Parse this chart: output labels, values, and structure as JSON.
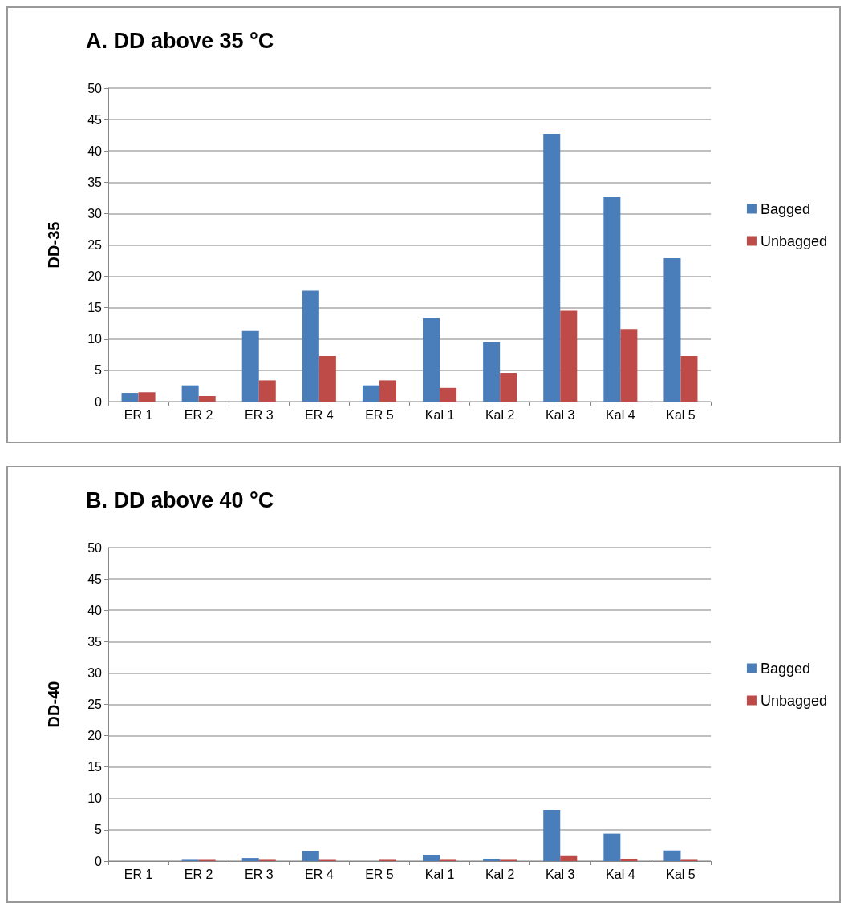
{
  "chart_data": [
    {
      "type": "bar",
      "title": "A. DD above 35 °C",
      "ylabel": "DD-35",
      "categories": [
        "ER 1",
        "ER 2",
        "ER 3",
        "ER 4",
        "ER 5",
        "Kal 1",
        "Kal 2",
        "Kal 3",
        "Kal 4",
        "Kal 5"
      ],
      "series": [
        {
          "name": "Bagged",
          "color": "#4a7ebb",
          "values": [
            1.4,
            2.6,
            11.3,
            17.7,
            2.6,
            13.3,
            9.5,
            42.7,
            32.6,
            22.9
          ]
        },
        {
          "name": "Unbagged",
          "color": "#be4b48",
          "values": [
            1.5,
            0.9,
            3.4,
            7.3,
            3.4,
            2.2,
            4.6,
            14.5,
            11.6,
            7.3
          ]
        }
      ],
      "ylim": [
        0,
        50
      ],
      "yticks": [
        0,
        5,
        10,
        15,
        20,
        25,
        30,
        35,
        40,
        45,
        50
      ],
      "grid": "y",
      "legend": "right"
    },
    {
      "type": "bar",
      "title": "B. DD above 40 °C",
      "ylabel": "DD-40",
      "categories": [
        "ER 1",
        "ER 2",
        "ER 3",
        "ER 4",
        "ER 5",
        "Kal 1",
        "Kal 2",
        "Kal 3",
        "Kal 4",
        "Kal 5"
      ],
      "series": [
        {
          "name": "Bagged",
          "color": "#4a7ebb",
          "values": [
            0,
            0.2,
            0.5,
            1.6,
            0,
            1.0,
            0.3,
            8.2,
            4.4,
            1.7
          ]
        },
        {
          "name": "Unbagged",
          "color": "#be4b48",
          "values": [
            0,
            0.2,
            0.2,
            0.2,
            0.2,
            0.2,
            0.2,
            0.8,
            0.3,
            0.2
          ]
        }
      ],
      "ylim": [
        0,
        50
      ],
      "yticks": [
        0,
        5,
        10,
        15,
        20,
        25,
        30,
        35,
        40,
        45,
        50
      ],
      "grid": "y",
      "legend": "right"
    }
  ]
}
